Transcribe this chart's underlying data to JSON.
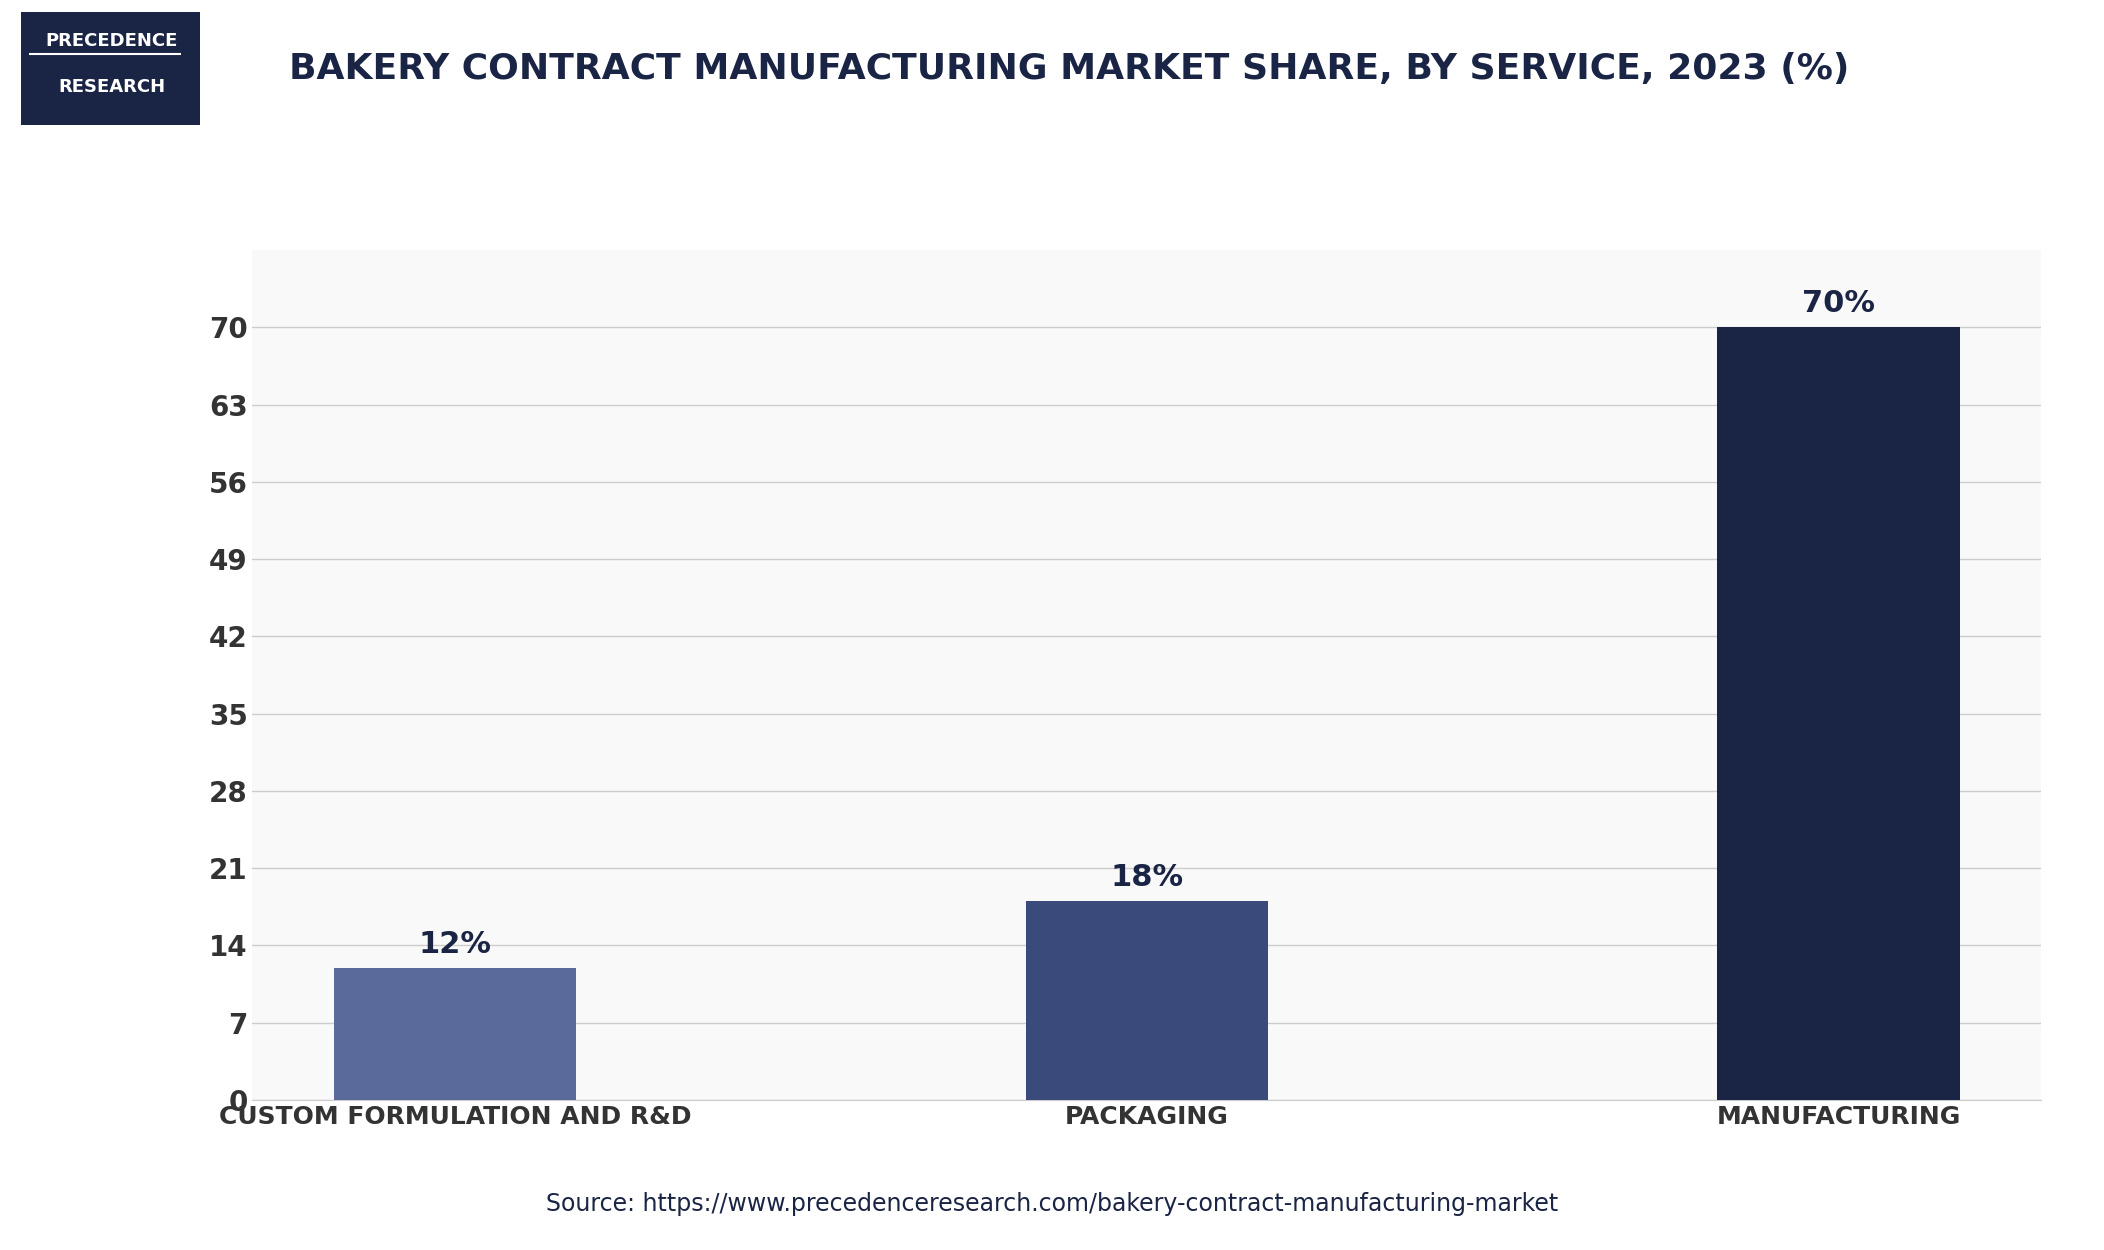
{
  "title": "BAKERY CONTRACT MANUFACTURING MARKET SHARE, BY SERVICE, 2023 (%)",
  "categories": [
    "CUSTOM FORMULATION AND R&D",
    "PACKAGING",
    "MANUFACTURING"
  ],
  "values": [
    12,
    18,
    70
  ],
  "labels": [
    "12%",
    "18%",
    "70%"
  ],
  "bar_colors": [
    "#5a6a9a",
    "#3a4a7a",
    "#1a2444"
  ],
  "background_color": "#ffffff",
  "plot_bg_color": "#f9f9f9",
  "yticks": [
    0,
    7,
    14,
    21,
    28,
    35,
    42,
    49,
    56,
    63,
    70
  ],
  "ylim": [
    0,
    77
  ],
  "source_text": "Source: https://www.precedenceresearch.com/bakery-contract-manufacturing-market",
  "title_color": "#1a2444",
  "bar_width": 0.35,
  "header_bar_color": "#1a2444",
  "logo_bg_color": "#1a2444",
  "logo_text_line1": "PRECEDENCE",
  "logo_text_line2": "RESEARCH"
}
